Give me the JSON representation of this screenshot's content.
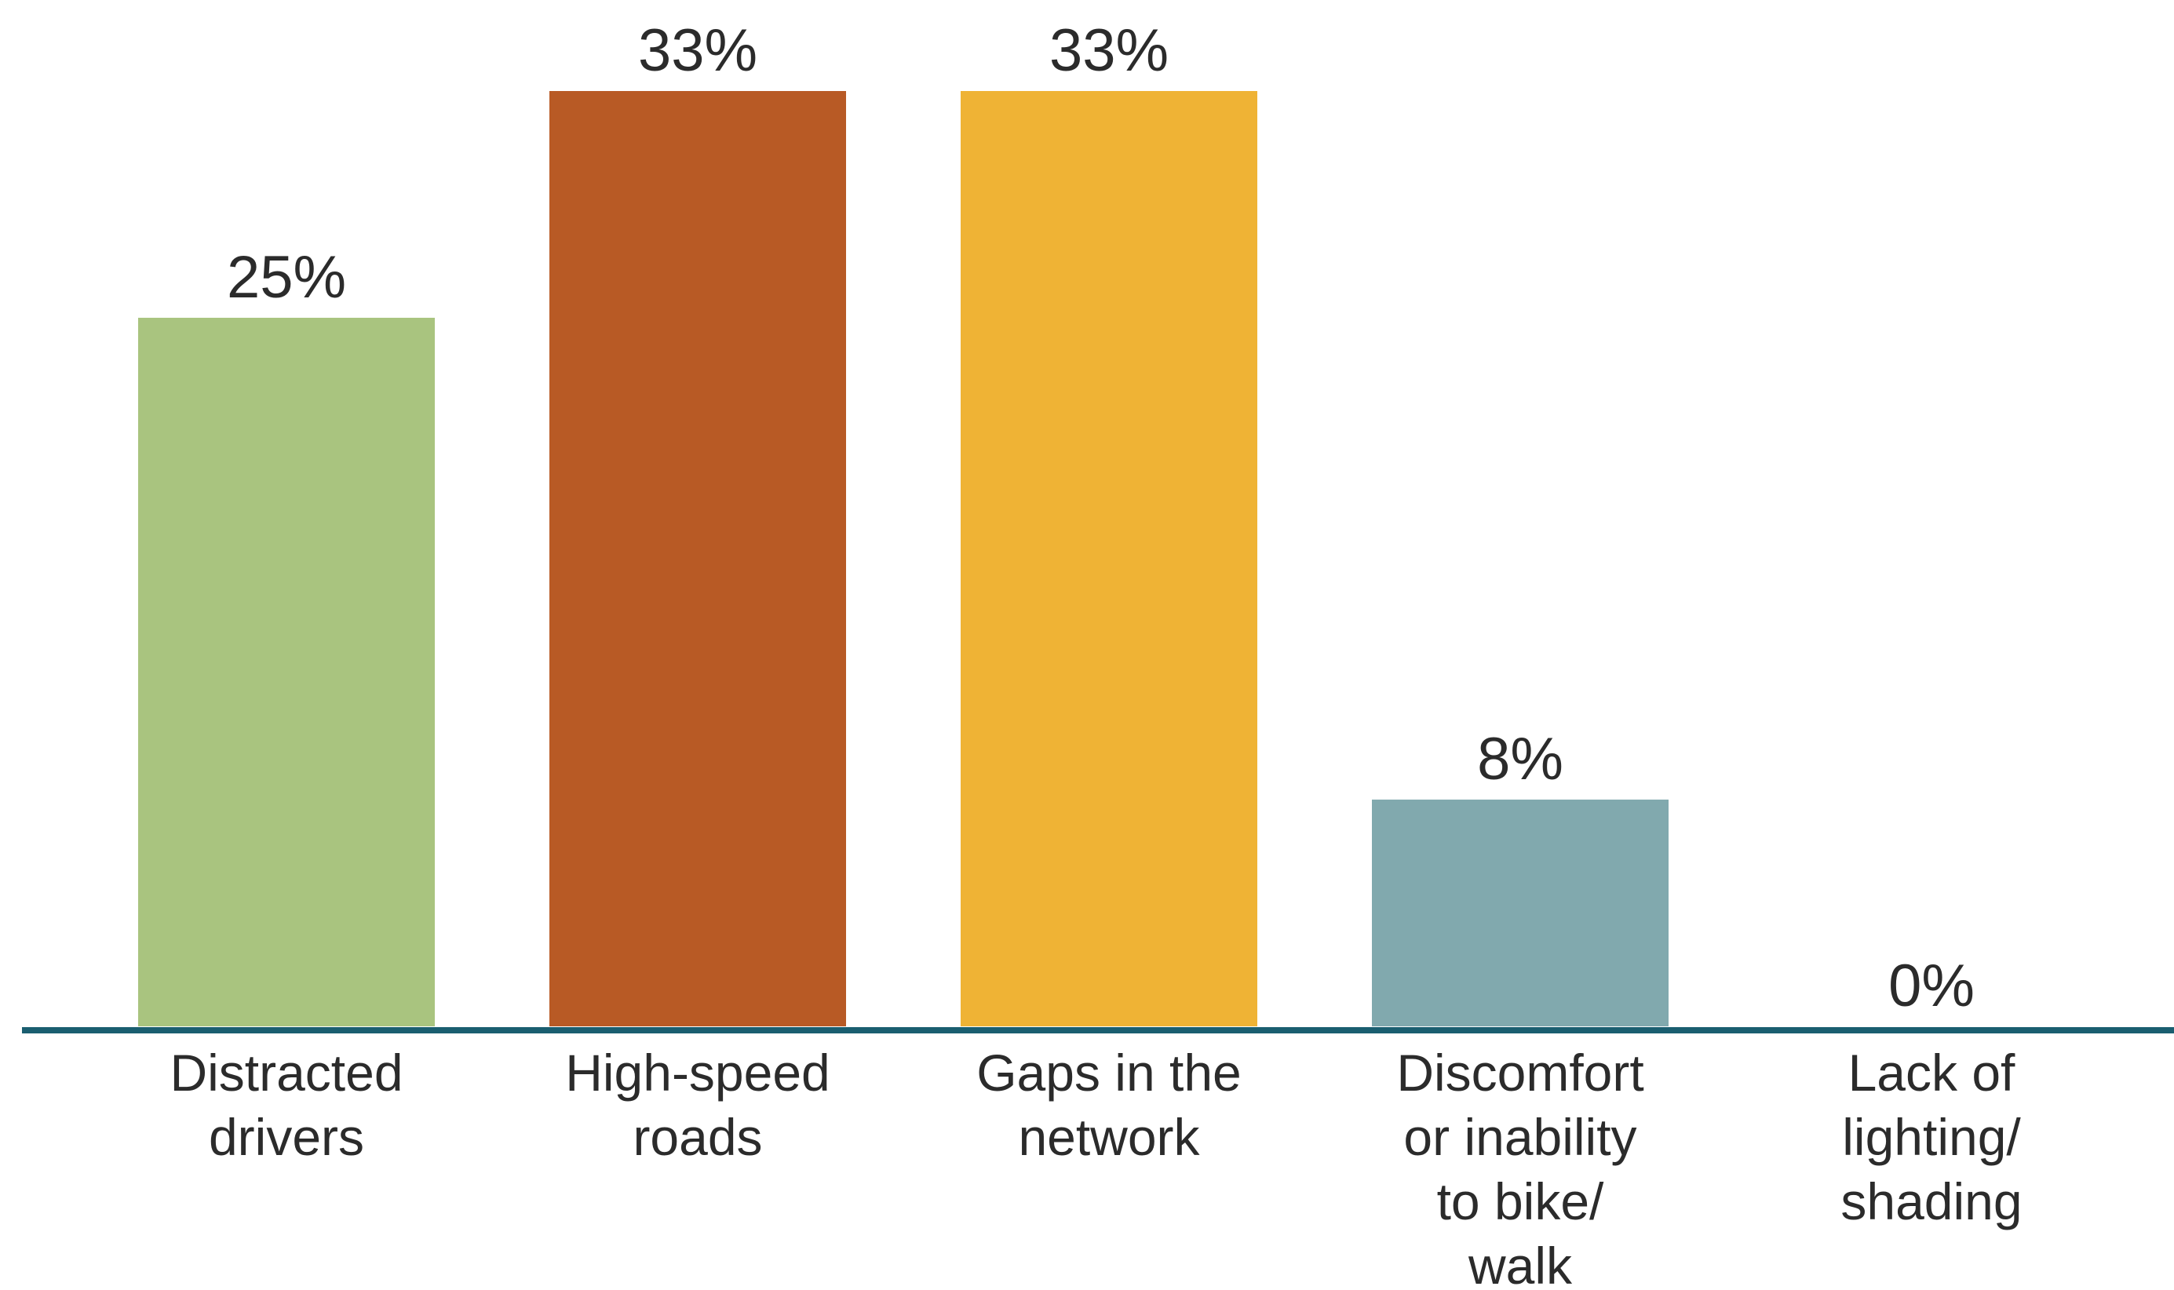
{
  "chart_data": {
    "type": "bar",
    "title": "",
    "xlabel": "",
    "ylabel": "",
    "ylim": [
      0,
      33
    ],
    "grid": false,
    "legend": "none",
    "categories": [
      "Distracted drivers",
      "High-speed roads",
      "Gaps in the network",
      "Discomfort or inability to bike/ walk",
      "Lack of lighting/ shading"
    ],
    "category_lines": [
      [
        "Distracted",
        "drivers"
      ],
      [
        "High-speed",
        "roads"
      ],
      [
        "Gaps in the",
        "network"
      ],
      [
        "Discomfort",
        "or inability",
        "to bike/",
        "walk"
      ],
      [
        "Lack of",
        "lighting/",
        "shading"
      ]
    ],
    "values": [
      25,
      33,
      33,
      8,
      0
    ],
    "value_labels": [
      "25%",
      "33%",
      "33%",
      "8%",
      "0%"
    ],
    "colors": [
      "#a9c47f",
      "#b85a25",
      "#efb335",
      "#81a9ae",
      "#ffffff"
    ],
    "axis_color": "#1a5e70"
  }
}
